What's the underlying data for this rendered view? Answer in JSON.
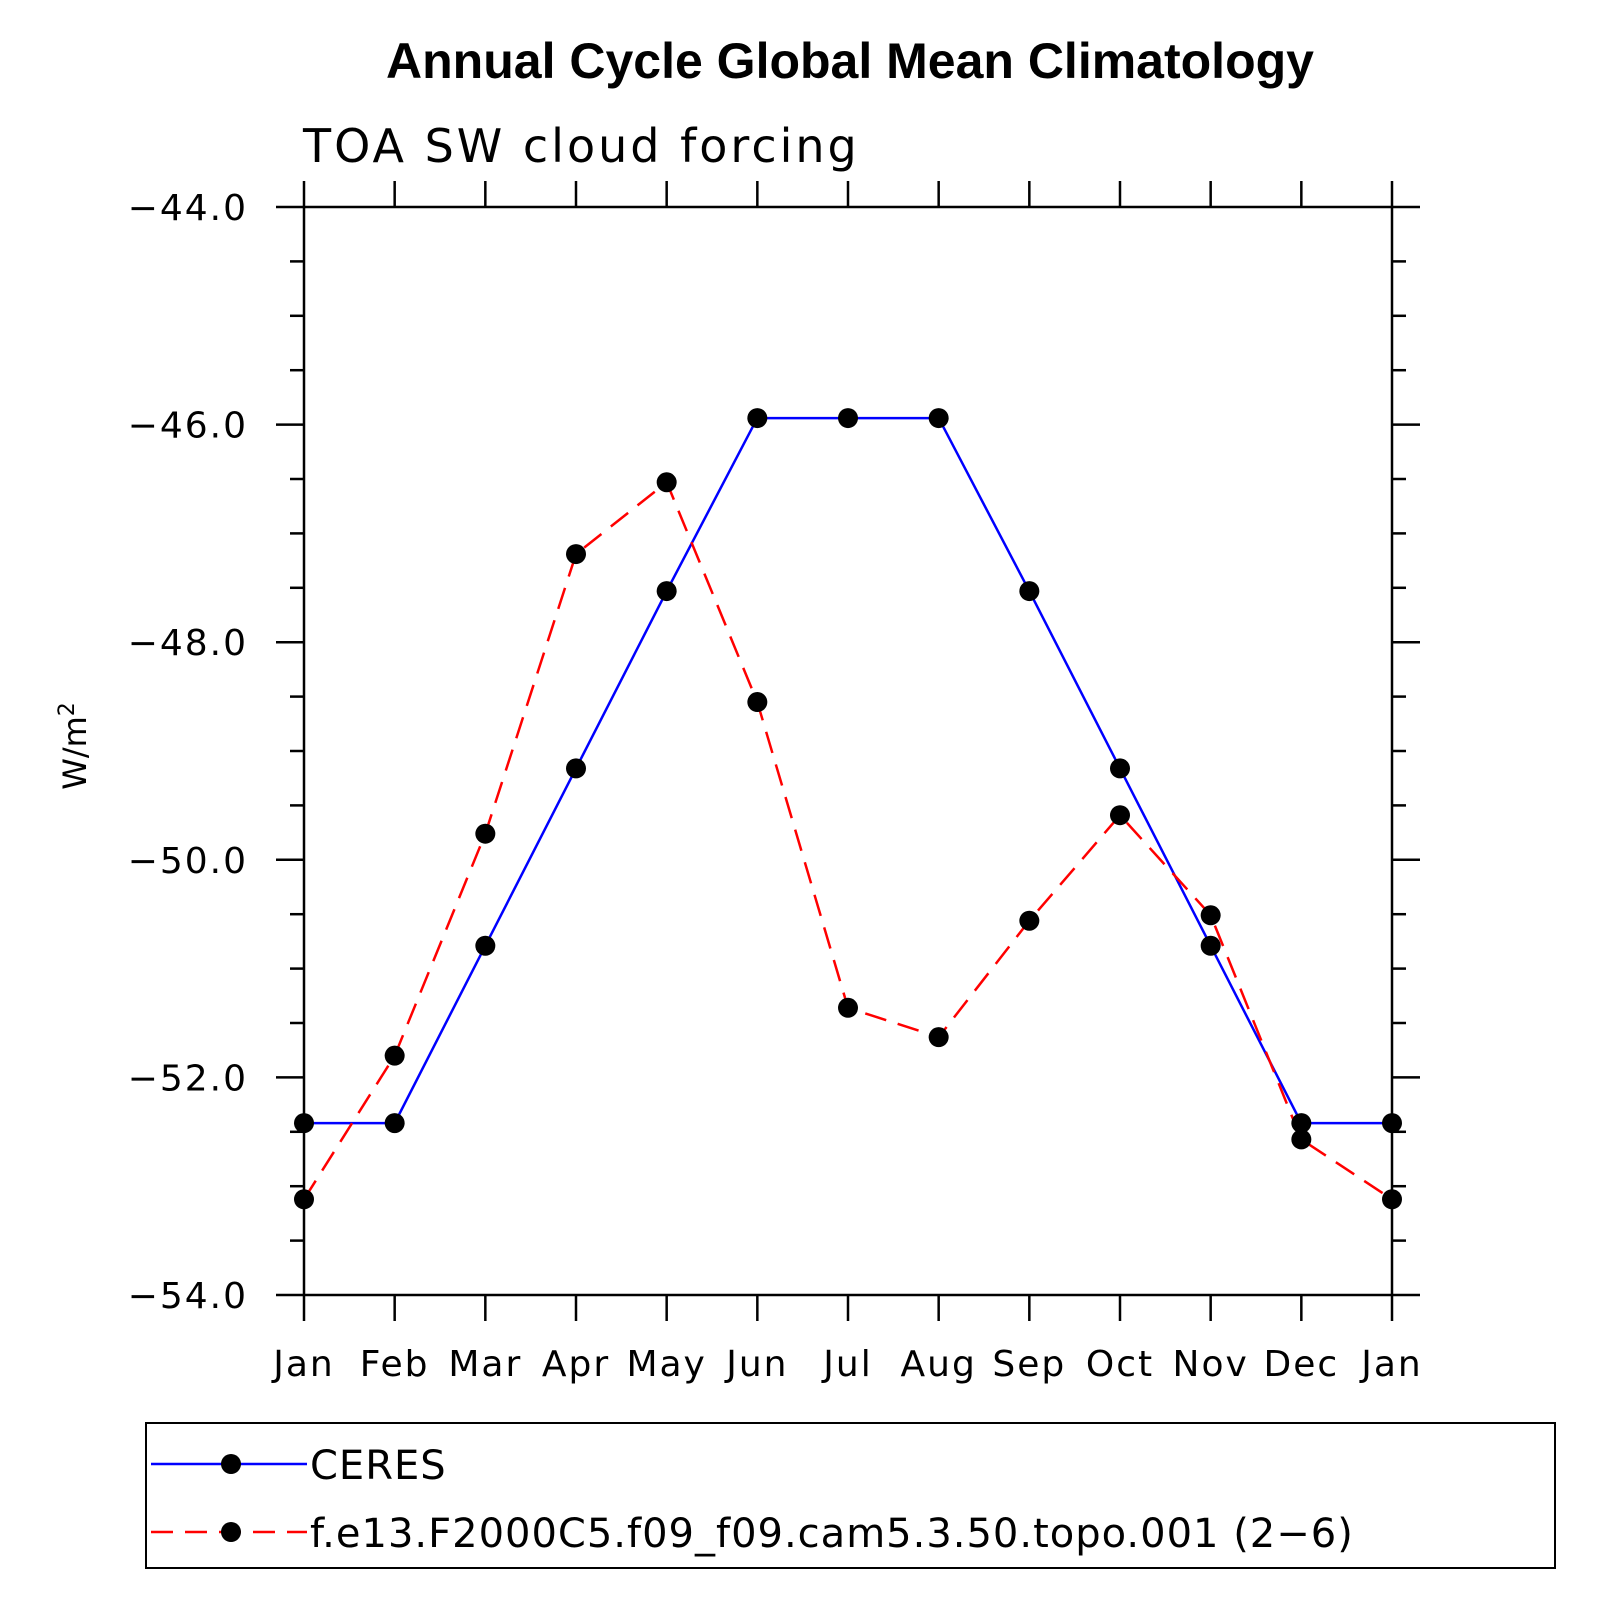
{
  "chart_data": {
    "type": "line",
    "title": "Annual Cycle Global Mean Climatology",
    "subtitle": "TOA SW cloud forcing",
    "ylabel": "W/m",
    "ylabel_sup": "2",
    "xlabel": "",
    "categories": [
      "Jan",
      "Feb",
      "Mar",
      "Apr",
      "May",
      "Jun",
      "Jul",
      "Aug",
      "Sep",
      "Oct",
      "Nov",
      "Dec",
      "Jan"
    ],
    "ylim": [
      -54.0,
      -44.0
    ],
    "yticks": [
      -44.0,
      -46.0,
      -48.0,
      -50.0,
      -52.0,
      -54.0
    ],
    "ytick_labels": [
      "−44.0",
      "−46.0",
      "−48.0",
      "−50.0",
      "−52.0",
      "−54.0"
    ],
    "grid": false,
    "legend_position": "bottom",
    "series": [
      {
        "name": "CERES",
        "color": "#0000ff",
        "style": "solid",
        "values": [
          -52.42,
          -52.42,
          -50.79,
          -49.16,
          -47.53,
          -45.94,
          -45.94,
          -45.94,
          -47.53,
          -49.16,
          -50.79,
          -52.42,
          -52.42
        ]
      },
      {
        "name": "f.e13.F2000C5.f09_f09.cam5.3.50.topo.001 (2−6)",
        "color": "#ff0000",
        "style": "dashed",
        "values": [
          -53.12,
          -51.8,
          -49.76,
          -47.19,
          -46.53,
          -48.55,
          -51.36,
          -51.63,
          -50.56,
          -49.59,
          -50.51,
          -52.57,
          -53.12
        ]
      }
    ]
  }
}
